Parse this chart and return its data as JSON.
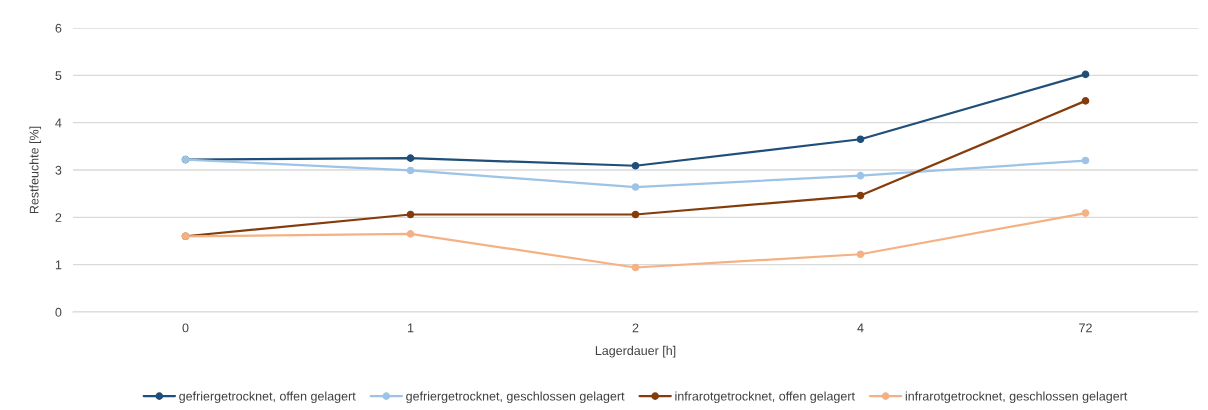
{
  "chart_data": {
    "type": "line",
    "xlabel": "Lagerdauer [h]",
    "ylabel": "Restfeuchte [%]",
    "categories": [
      "0",
      "1",
      "2",
      "4",
      "72"
    ],
    "ylim": [
      0,
      6
    ],
    "yticks": [
      0,
      1,
      2,
      3,
      4,
      5,
      6
    ],
    "grid": "y",
    "legend": "bottom",
    "marker": "circle",
    "line_style": "solid",
    "series": [
      {
        "name": "gefriergetrocknet, offen gelagert",
        "color": "#1f4e79",
        "values": [
          3.22,
          3.25,
          3.09,
          3.65,
          5.02
        ]
      },
      {
        "name": "gefriergetrocknet, geschlossen gelagert",
        "color": "#9dc3e6",
        "values": [
          3.22,
          2.99,
          2.64,
          2.88,
          3.2
        ]
      },
      {
        "name": "infrarotgetrocknet, offen gelagert",
        "color": "#843c0c",
        "values": [
          1.6,
          2.06,
          2.06,
          2.46,
          4.46
        ]
      },
      {
        "name": "infrarotgetrocknet, geschlossen gelagert",
        "color": "#f4b183",
        "values": [
          1.6,
          1.65,
          0.94,
          1.22,
          2.09
        ]
      }
    ]
  }
}
